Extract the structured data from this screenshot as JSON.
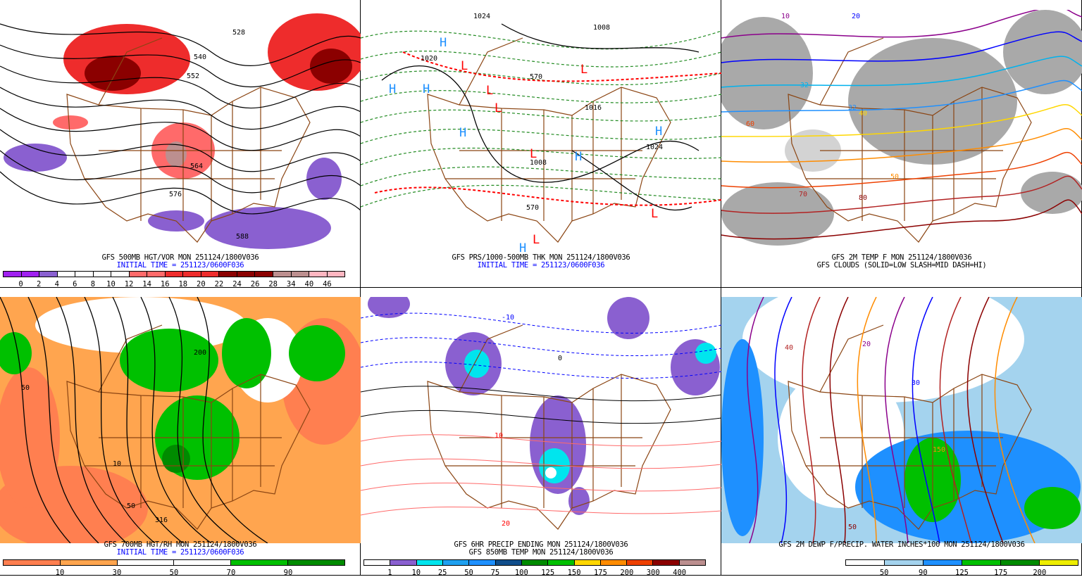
{
  "panels": [
    {
      "id": "p1",
      "caption": "GFS 500MB HGT/VOR MON 251124/1800V036",
      "init": "INITIAL TIME = 251123/0600F036",
      "colorbar": {
        "colors": [
          "#a020f0",
          "#a020f0",
          "#8a60d0",
          "#ffffff",
          "#ffffff",
          "#ffffff",
          "#ffffff",
          "#ff6a6a",
          "#ff6a6a",
          "#ee2c2c",
          "#ee2c2c",
          "#ee2c2c",
          "#8b0000",
          "#8b0000",
          "#8b0000",
          "#bc8f8f",
          "#bc8f8f",
          "#ffb6c1",
          "#ffb6c1"
        ],
        "labels": [
          "0",
          "2",
          "4",
          "6",
          "8",
          "10",
          "12",
          "14",
          "16",
          "18",
          "20",
          "22",
          "24",
          "26",
          "28",
          "34",
          "40",
          "46"
        ]
      },
      "contour_labels": [
        "528",
        "540",
        "552",
        "564",
        "576",
        "588"
      ]
    },
    {
      "id": "p2",
      "caption": "GFS PRS/1000-500MB THK MON 251124/1800V036",
      "init": "INITIAL TIME = 251123/0600F036",
      "pressure_labels": [
        "1024",
        "1008",
        "1020",
        "1016",
        "1008",
        "1024",
        "570",
        "570"
      ],
      "highs": [
        "H",
        "H",
        "H",
        "H",
        "H",
        "H",
        "H"
      ],
      "lows": [
        "L",
        "L",
        "L",
        "L",
        "L",
        "L",
        "L"
      ]
    },
    {
      "id": "p3",
      "caption": "GFS 2M TEMP F MON 251124/1800V036",
      "caption2": "GFS CLOUDS (SOLID=LOW SLASH=MID DASH=HI)",
      "contour_labels": [
        "10",
        "20",
        "32",
        "32",
        "40",
        "50",
        "60",
        "70",
        "80"
      ]
    },
    {
      "id": "p4",
      "caption": "GFS 700MB HGT/RH MON 251124/1800V036",
      "init": "INITIAL TIME = 251123/0600F036",
      "colorbar": {
        "colors": [
          "#ff7f50",
          "#ffa54f",
          "#ffffff",
          "#ffffff",
          "#00c000",
          "#008b00"
        ],
        "labels": [
          "10",
          "30",
          "50",
          "70",
          "90"
        ]
      },
      "contour_labels": [
        "50",
        "10",
        "50",
        "200",
        "316"
      ]
    },
    {
      "id": "p5",
      "caption": "GFS 6HR PRECIP ENDING MON 251124/1800V036",
      "caption2": "GFS 850MB TEMP MON 251124/1800V036",
      "colorbar": {
        "colors": [
          "#ffffff",
          "#8a60d0",
          "#00e5ee",
          "#1ea0f0",
          "#1e90ff",
          "#104e8b",
          "#008b00",
          "#00c000",
          "#ffd700",
          "#ff8c00",
          "#ee4000",
          "#8b0000",
          "#bc8f8f"
        ],
        "labels": [
          "1",
          "10",
          "25",
          "50",
          "75",
          "100",
          "125",
          "150",
          "175",
          "200",
          "300",
          "400"
        ]
      },
      "contour_labels": [
        "-10",
        "0",
        "10",
        "20"
      ]
    },
    {
      "id": "p6",
      "caption": "GFS 2M DEWP F/PRECIP. WATER INCHES*100 MON 251124/1800V036",
      "colorbar": {
        "colors": [
          "#ffffff",
          "#a4d3ee",
          "#1e90ff",
          "#00c000",
          "#008b00",
          "#eeee00"
        ],
        "labels": [
          "50",
          "90",
          "125",
          "175",
          "200"
        ]
      },
      "contour_labels": [
        "20",
        "30",
        "40",
        "50",
        "150"
      ]
    }
  ]
}
